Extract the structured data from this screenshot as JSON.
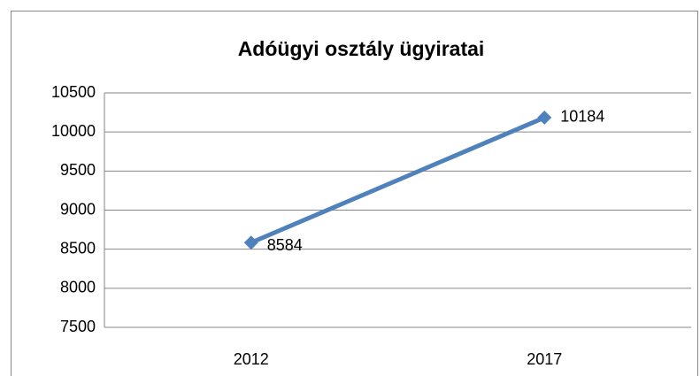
{
  "chart_data": {
    "type": "line",
    "title": "Adóügyi osztály ügyiratai",
    "categories": [
      "2012",
      "2017"
    ],
    "values": [
      8584,
      10184
    ],
    "color": "#4f81bd",
    "ylim": [
      7500,
      10500
    ],
    "yticks": [
      7500,
      8000,
      8500,
      9000,
      9500,
      10000,
      10500
    ],
    "grid": true
  }
}
